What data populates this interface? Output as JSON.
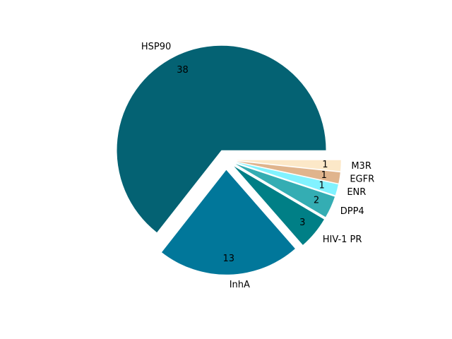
{
  "chart_data": {
    "type": "pie",
    "slices": [
      {
        "label": "HSP90",
        "value": 38,
        "value_label": "38",
        "color": "#046273"
      },
      {
        "label": "InhA",
        "value": 13,
        "value_label": "13",
        "color": "#01779A"
      },
      {
        "label": "HIV-1 PR",
        "value": 3,
        "value_label": "3",
        "color": "#007F86"
      },
      {
        "label": "DPP4",
        "value": 2,
        "value_label": "2",
        "color": "#34ADB3"
      },
      {
        "label": "ENR",
        "value": 1,
        "value_label": "1",
        "color": "#81F2FF"
      },
      {
        "label": "EGFR",
        "value": 1,
        "value_label": "1",
        "color": "#E0B48D"
      },
      {
        "label": "M3R",
        "value": 1,
        "value_label": "1",
        "color": "#FCE8C8"
      }
    ],
    "start_angle_deg": 0,
    "direction": "counterclockwise",
    "exploded": true,
    "title": "",
    "legend": "none"
  }
}
